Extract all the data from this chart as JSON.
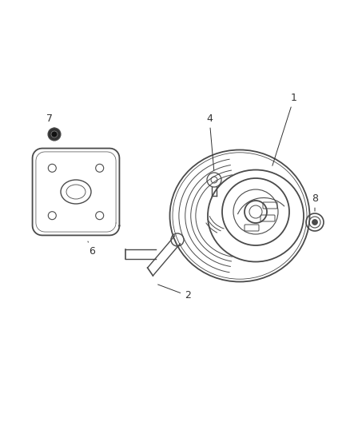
{
  "background_color": "#ffffff",
  "line_color": "#4a4a4a",
  "label_color": "#333333",
  "fig_width": 4.39,
  "fig_height": 5.33,
  "dpi": 100,
  "label_fontsize": 9
}
